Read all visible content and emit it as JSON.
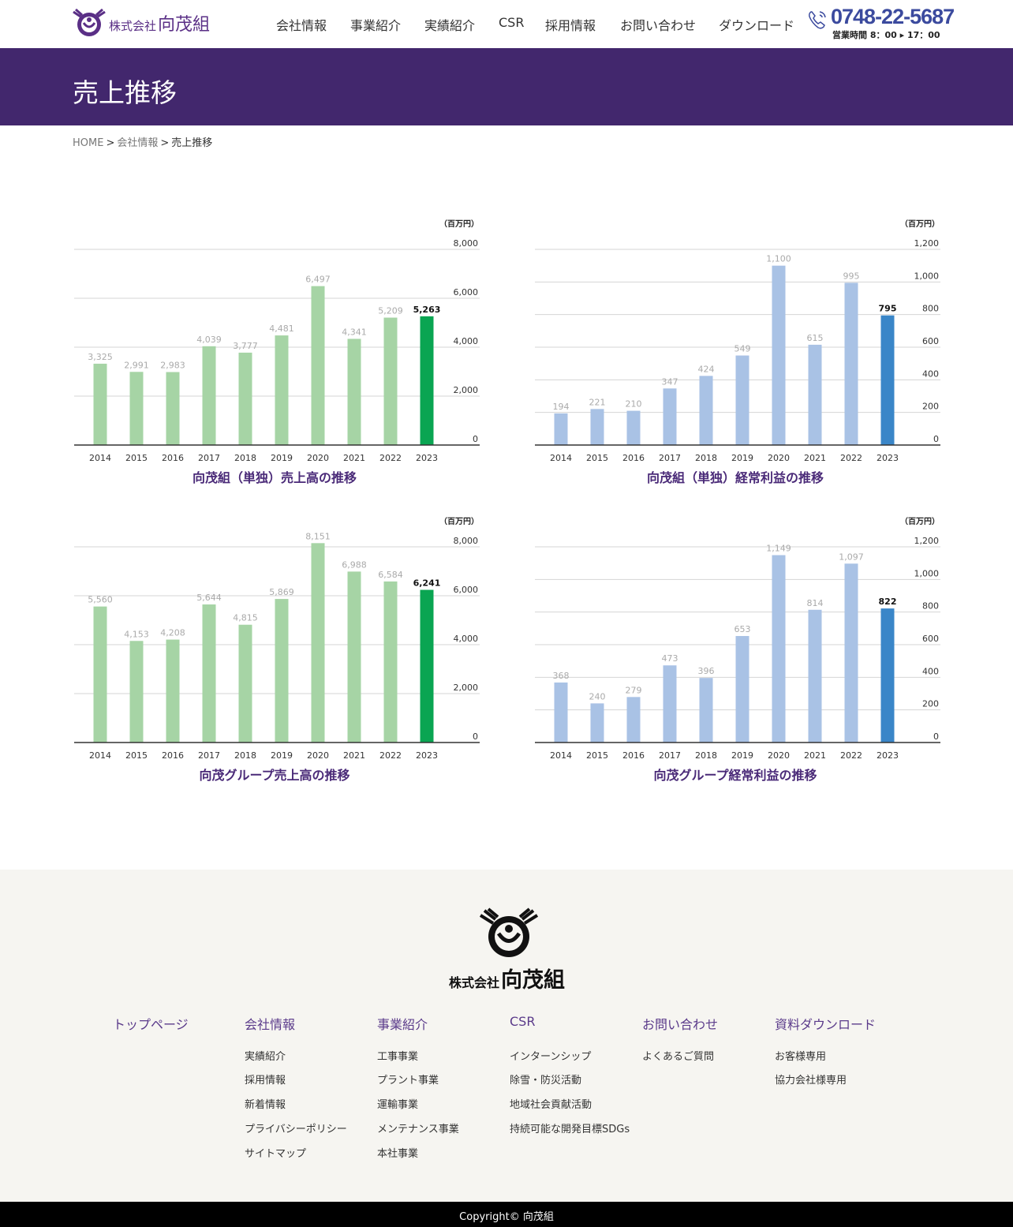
{
  "header": {
    "logo_small": "株式会社",
    "logo_big": "向茂組",
    "nav": [
      "会社情報",
      "事業紹介",
      "実績紹介",
      "CSR",
      "採用情報",
      "お問い合わせ",
      "ダウンロード"
    ],
    "phone": "0748-22-5687",
    "hours": "営業時間 8：00 ▸ 17：00"
  },
  "title": "売上推移",
  "breadcrumb": {
    "home": "HOME",
    "parent": "会社情報",
    "current": "売上推移",
    "sep": ">"
  },
  "colors": {
    "purple": "#42276d",
    "green_light": "#a6d4a5",
    "green_dark": "#0aa552",
    "blue_light": "#a9c2e5",
    "blue_dark": "#3a86c8"
  },
  "chart_data": [
    {
      "type": "bar",
      "title": "向茂組（単独）売上高の推移",
      "unit": "（百万円）",
      "categories": [
        "2014",
        "2015",
        "2016",
        "2017",
        "2018",
        "2019",
        "2020",
        "2021",
        "2022",
        "2023"
      ],
      "values": [
        3325,
        2991,
        2983,
        4039,
        3777,
        4481,
        6497,
        4341,
        5209,
        5263
      ],
      "value_labels": [
        "3,325",
        "2,991",
        "2,983",
        "4,039",
        "3,777",
        "4,481",
        "6,497",
        "4,341",
        "5,209",
        "5,263"
      ],
      "yticks": [
        "0",
        "2,000",
        "4,000",
        "6,000",
        "8,000"
      ],
      "ylim": [
        0,
        8000
      ],
      "highlight": "2023",
      "palette": "green"
    },
    {
      "type": "bar",
      "title": "向茂組（単独）経常利益の推移",
      "unit": "（百万円）",
      "categories": [
        "2014",
        "2015",
        "2016",
        "2017",
        "2018",
        "2019",
        "2020",
        "2021",
        "2022",
        "2023"
      ],
      "values": [
        194,
        221,
        210,
        347,
        424,
        549,
        1100,
        615,
        995,
        795
      ],
      "value_labels": [
        "194",
        "221",
        "210",
        "347",
        "424",
        "549",
        "1,100",
        "615",
        "995",
        "795"
      ],
      "yticks": [
        "0",
        "200",
        "400",
        "600",
        "800",
        "1,000",
        "1,200"
      ],
      "ylim": [
        0,
        1200
      ],
      "highlight": "2023",
      "palette": "blue"
    },
    {
      "type": "bar",
      "title": "向茂グループ売上高の推移",
      "unit": "（百万円）",
      "categories": [
        "2014",
        "2015",
        "2016",
        "2017",
        "2018",
        "2019",
        "2020",
        "2021",
        "2022",
        "2023"
      ],
      "values": [
        5560,
        4153,
        4208,
        5644,
        4815,
        5869,
        8151,
        6988,
        6584,
        6241
      ],
      "value_labels": [
        "5,560",
        "4,153",
        "4,208",
        "5,644",
        "4,815",
        "5,869",
        "8,151",
        "6,988",
        "6,584",
        "6,241"
      ],
      "yticks": [
        "0",
        "2,000",
        "4,000",
        "6,000",
        "8,000"
      ],
      "ylim": [
        0,
        8000
      ],
      "highlight": "2023",
      "palette": "green"
    },
    {
      "type": "bar",
      "title": "向茂グループ経常利益の推移",
      "unit": "（百万円）",
      "categories": [
        "2014",
        "2015",
        "2016",
        "2017",
        "2018",
        "2019",
        "2020",
        "2021",
        "2022",
        "2023"
      ],
      "values": [
        368,
        240,
        279,
        473,
        396,
        653,
        1149,
        814,
        1097,
        822
      ],
      "value_labels": [
        "368",
        "240",
        "279",
        "473",
        "396",
        "653",
        "1,149",
        "814",
        "1,097",
        "822"
      ],
      "yticks": [
        "0",
        "200",
        "400",
        "600",
        "800",
        "1,000",
        "1,200"
      ],
      "ylim": [
        0,
        1200
      ],
      "highlight": "2023",
      "palette": "blue"
    }
  ],
  "footer": {
    "logo_small": "株式会社",
    "logo_big": "向茂組",
    "columns": [
      {
        "head": "トップページ",
        "links": []
      },
      {
        "head": "会社情報",
        "links": [
          "実績紹介",
          "採用情報",
          "新着情報",
          "プライバシーポリシー",
          "サイトマップ"
        ]
      },
      {
        "head": "事業紹介",
        "links": [
          "工事事業",
          "プラント事業",
          "運輸事業",
          "メンテナンス事業",
          "本社事業"
        ]
      },
      {
        "head": "CSR",
        "links": [
          "インターンシップ",
          "除雪・防災活動",
          "地域社会貢献活動",
          "持続可能な開発目標SDGs"
        ]
      },
      {
        "head": "お問い合わせ",
        "links": [
          "よくあるご質問"
        ]
      },
      {
        "head": "資料ダウンロード",
        "links": [
          "お客様専用",
          "協力会社様専用"
        ]
      }
    ],
    "copyright": "Copyright© 向茂組"
  }
}
